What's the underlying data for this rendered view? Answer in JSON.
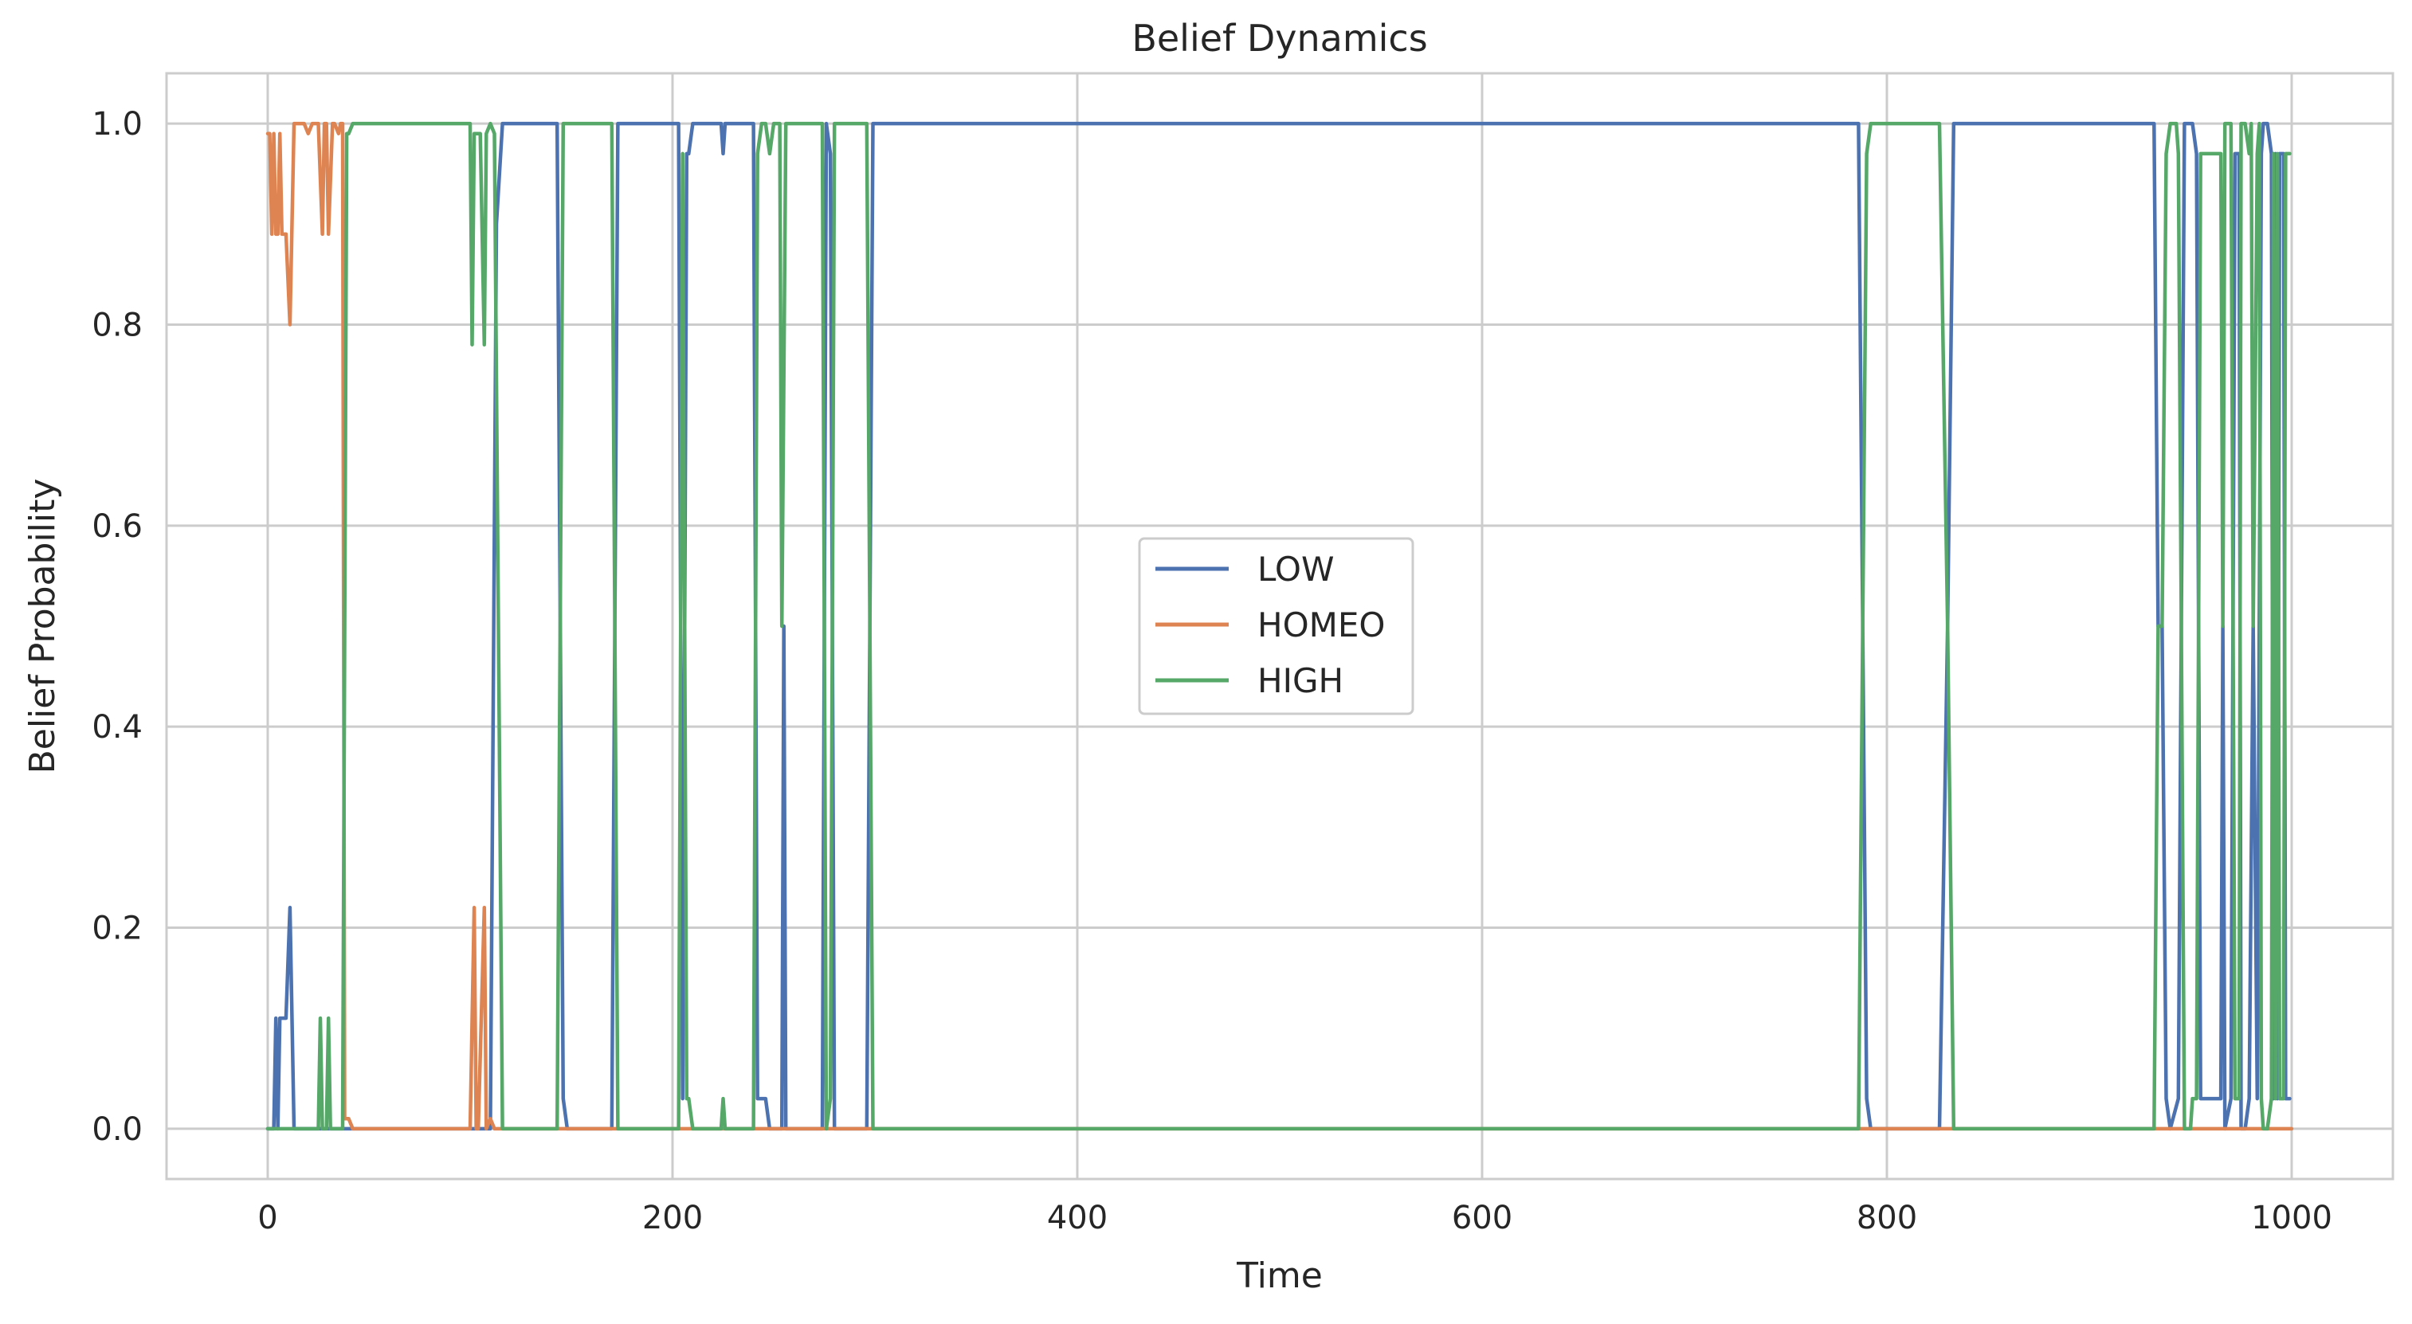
{
  "chart_data": {
    "type": "line",
    "title": "Belief Dynamics",
    "xlabel": "Time",
    "ylabel": "Belief Probability",
    "xlim": [
      -50,
      1050
    ],
    "ylim": [
      -0.05,
      1.05
    ],
    "xticks": [
      0,
      200,
      400,
      600,
      800,
      1000
    ],
    "xtick_labels": [
      "0",
      "200",
      "400",
      "600",
      "800",
      "1000"
    ],
    "yticks": [
      0.0,
      0.2,
      0.4,
      0.6,
      0.8,
      1.0
    ],
    "ytick_labels": [
      "0.0",
      "0.2",
      "0.4",
      "0.6",
      "0.8",
      "1.0"
    ],
    "grid": true,
    "legend_position": "center",
    "series": [
      {
        "name": "LOW",
        "color": "#4c72b0",
        "points": [
          [
            0,
            0
          ],
          [
            3,
            0
          ],
          [
            4,
            0.11
          ],
          [
            5,
            0
          ],
          [
            6,
            0.11
          ],
          [
            9,
            0.11
          ],
          [
            11,
            0.22
          ],
          [
            13,
            0
          ],
          [
            30,
            0
          ],
          [
            100,
            0
          ],
          [
            110,
            0
          ],
          [
            113,
            0.9
          ],
          [
            116,
            1
          ],
          [
            143,
            1
          ],
          [
            146,
            0.03
          ],
          [
            148,
            0
          ],
          [
            170,
            0
          ],
          [
            173,
            1
          ],
          [
            203,
            1
          ],
          [
            205,
            0.03
          ],
          [
            207,
            0.97
          ],
          [
            208,
            0.97
          ],
          [
            210,
            1
          ],
          [
            224,
            1
          ],
          [
            225,
            0.97
          ],
          [
            226,
            1
          ],
          [
            240,
            1
          ],
          [
            242,
            0.03
          ],
          [
            246,
            0.03
          ],
          [
            248,
            0
          ],
          [
            254,
            0
          ],
          [
            255,
            0.5
          ],
          [
            256,
            0
          ],
          [
            274,
            0
          ],
          [
            276,
            1
          ],
          [
            278,
            0.97
          ],
          [
            280,
            0
          ],
          [
            296,
            0
          ],
          [
            299,
            1
          ],
          [
            300,
            1
          ],
          [
            786,
            1
          ],
          [
            790,
            0.03
          ],
          [
            792,
            0
          ],
          [
            826,
            0
          ],
          [
            830,
            0.5
          ],
          [
            833,
            1
          ],
          [
            932,
            1
          ],
          [
            934,
            0.5
          ],
          [
            936,
            0.5
          ],
          [
            938,
            0.03
          ],
          [
            940,
            0
          ],
          [
            944,
            0.03
          ],
          [
            947,
            1
          ],
          [
            950,
            1
          ],
          [
            951,
            1
          ],
          [
            953,
            0.97
          ],
          [
            955,
            0.03
          ],
          [
            958,
            0.03
          ],
          [
            961,
            0.03
          ],
          [
            963,
            0.03
          ],
          [
            965,
            0.03
          ],
          [
            966,
            0.5
          ],
          [
            967,
            0
          ],
          [
            970,
            0.03
          ],
          [
            972,
            0.97
          ],
          [
            974,
            0.97
          ],
          [
            975,
            0
          ],
          [
            977,
            0
          ],
          [
            979,
            0.03
          ],
          [
            981,
            0.5
          ],
          [
            983,
            0.03
          ],
          [
            985,
            0.97
          ],
          [
            986,
            1
          ],
          [
            988,
            1
          ],
          [
            990,
            0.97
          ],
          [
            991,
            0.03
          ],
          [
            992,
            0.97
          ],
          [
            993,
            0.03
          ],
          [
            994,
            0.97
          ],
          [
            996,
            0.97
          ],
          [
            997,
            0.03
          ],
          [
            999,
            0.03
          ]
        ]
      },
      {
        "name": "HOMEO",
        "color": "#dd8452",
        "points": [
          [
            0,
            0.99
          ],
          [
            1,
            0.99
          ],
          [
            2,
            0.89
          ],
          [
            3,
            0.99
          ],
          [
            4,
            0.89
          ],
          [
            5,
            0.89
          ],
          [
            6,
            0.99
          ],
          [
            7,
            0.89
          ],
          [
            9,
            0.89
          ],
          [
            11,
            0.8
          ],
          [
            13,
            1
          ],
          [
            18,
            1
          ],
          [
            20,
            0.99
          ],
          [
            22,
            1
          ],
          [
            24,
            1
          ],
          [
            25,
            1
          ],
          [
            27,
            0.89
          ],
          [
            28,
            1
          ],
          [
            29,
            1
          ],
          [
            30,
            0.89
          ],
          [
            32,
            1
          ],
          [
            33,
            1
          ],
          [
            35,
            0.99
          ],
          [
            36,
            1
          ],
          [
            37,
            1
          ],
          [
            38,
            0.01
          ],
          [
            40,
            0.01
          ],
          [
            42,
            0
          ],
          [
            100,
            0
          ],
          [
            102,
            0.22
          ],
          [
            103,
            0
          ],
          [
            104,
            0
          ],
          [
            107,
            0.22
          ],
          [
            108,
            0
          ],
          [
            110,
            0.01
          ],
          [
            112,
            0
          ],
          [
            1000,
            0
          ]
        ]
      },
      {
        "name": "HIGH",
        "color": "#55a868",
        "points": [
          [
            0,
            0
          ],
          [
            25,
            0
          ],
          [
            26,
            0.11
          ],
          [
            27,
            0
          ],
          [
            29,
            0
          ],
          [
            30,
            0.11
          ],
          [
            31,
            0
          ],
          [
            35,
            0
          ],
          [
            37,
            0
          ],
          [
            39,
            0.99
          ],
          [
            40,
            0.99
          ],
          [
            42,
            1
          ],
          [
            100,
            1
          ],
          [
            101,
            0.78
          ],
          [
            102,
            0.99
          ],
          [
            105,
            0.99
          ],
          [
            107,
            0.78
          ],
          [
            108,
            0.99
          ],
          [
            110,
            1
          ],
          [
            112,
            0.99
          ],
          [
            116,
            0
          ],
          [
            143,
            0
          ],
          [
            146,
            1
          ],
          [
            170,
            1
          ],
          [
            173,
            0
          ],
          [
            203,
            0
          ],
          [
            205,
            0.97
          ],
          [
            207,
            0.03
          ],
          [
            208,
            0.03
          ],
          [
            210,
            0
          ],
          [
            224,
            0
          ],
          [
            225,
            0.03
          ],
          [
            226,
            0
          ],
          [
            240,
            0
          ],
          [
            242,
            0.97
          ],
          [
            244,
            1
          ],
          [
            246,
            1
          ],
          [
            248,
            0.97
          ],
          [
            250,
            1
          ],
          [
            253,
            1
          ],
          [
            254,
            0.5
          ],
          [
            256,
            1
          ],
          [
            274,
            1
          ],
          [
            276,
            0
          ],
          [
            278,
            0.03
          ],
          [
            280,
            1
          ],
          [
            296,
            1
          ],
          [
            299,
            0
          ],
          [
            786,
            0
          ],
          [
            790,
            0.97
          ],
          [
            792,
            1
          ],
          [
            826,
            1
          ],
          [
            830,
            0.5
          ],
          [
            833,
            0
          ],
          [
            932,
            0
          ],
          [
            934,
            0.5
          ],
          [
            936,
            0.5
          ],
          [
            938,
            0.97
          ],
          [
            940,
            1
          ],
          [
            943,
            1
          ],
          [
            944,
            0.97
          ],
          [
            947,
            0
          ],
          [
            950,
            0
          ],
          [
            951,
            0.03
          ],
          [
            953,
            0.03
          ],
          [
            955,
            0.97
          ],
          [
            958,
            0.97
          ],
          [
            961,
            0.97
          ],
          [
            963,
            0.97
          ],
          [
            964,
            0.97
          ],
          [
            965,
            0.97
          ],
          [
            966,
            0.5
          ],
          [
            967,
            1
          ],
          [
            970,
            1
          ],
          [
            972,
            0.03
          ],
          [
            974,
            0.03
          ],
          [
            975,
            1
          ],
          [
            977,
            1
          ],
          [
            979,
            0.97
          ],
          [
            980,
            1
          ],
          [
            981,
            0.5
          ],
          [
            983,
            0.97
          ],
          [
            984,
            1
          ],
          [
            985,
            0.03
          ],
          [
            986,
            0
          ],
          [
            988,
            0
          ],
          [
            990,
            0.03
          ],
          [
            991,
            0.97
          ],
          [
            992,
            0.03
          ],
          [
            993,
            0.97
          ],
          [
            994,
            0.03
          ],
          [
            996,
            0.03
          ],
          [
            997,
            0.97
          ],
          [
            999,
            0.97
          ]
        ]
      }
    ]
  }
}
